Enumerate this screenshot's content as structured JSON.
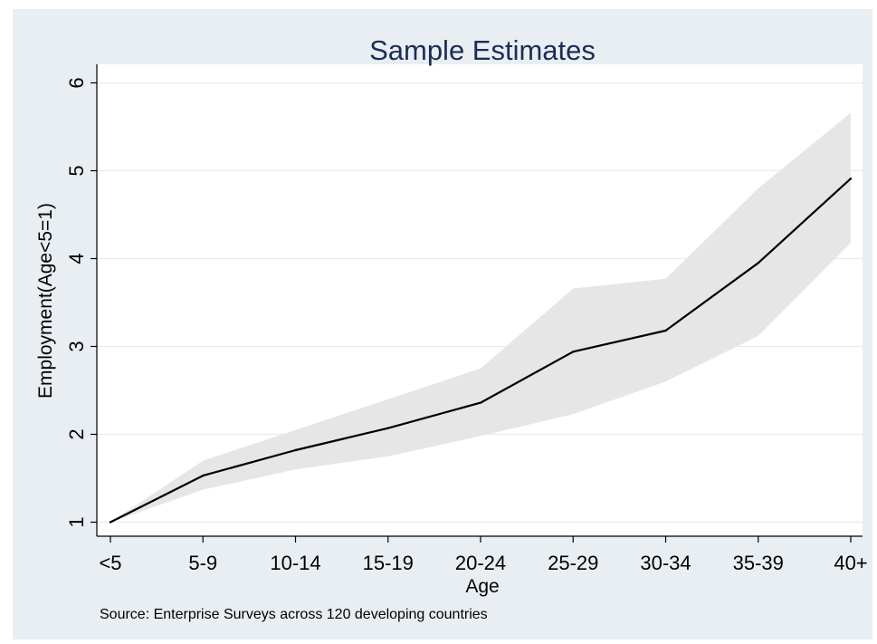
{
  "chart_data": {
    "type": "line",
    "title": "Sample Estimates",
    "xlabel": "Age",
    "ylabel": "Employment(Age<5=1)",
    "categories": [
      "<5",
      "5-9",
      "10-14",
      "15-19",
      "20-24",
      "25-29",
      "30-34",
      "35-39",
      "40+"
    ],
    "series": [
      {
        "values": [
          1.0,
          1.53,
          1.82,
          2.07,
          2.36,
          2.94,
          3.18,
          3.95,
          4.91
        ]
      }
    ],
    "confidence_band": {
      "lower": [
        1.0,
        1.37,
        1.6,
        1.75,
        1.98,
        2.23,
        2.6,
        3.12,
        4.18
      ],
      "upper": [
        1.0,
        1.7,
        2.05,
        2.4,
        2.75,
        3.66,
        3.77,
        4.8,
        5.66
      ]
    },
    "ylim": [
      0.85,
      6.2
    ],
    "yticks": [
      1,
      2,
      3,
      4,
      5,
      6
    ],
    "grid": true,
    "source_note": "Source: Enterprise Surveys across 120 developing countries",
    "colors": {
      "background": "#e9eef3",
      "plot_area": "#ffffff",
      "line": "#000000",
      "band": "#e6e6e6",
      "title": "#1c2d54"
    }
  }
}
